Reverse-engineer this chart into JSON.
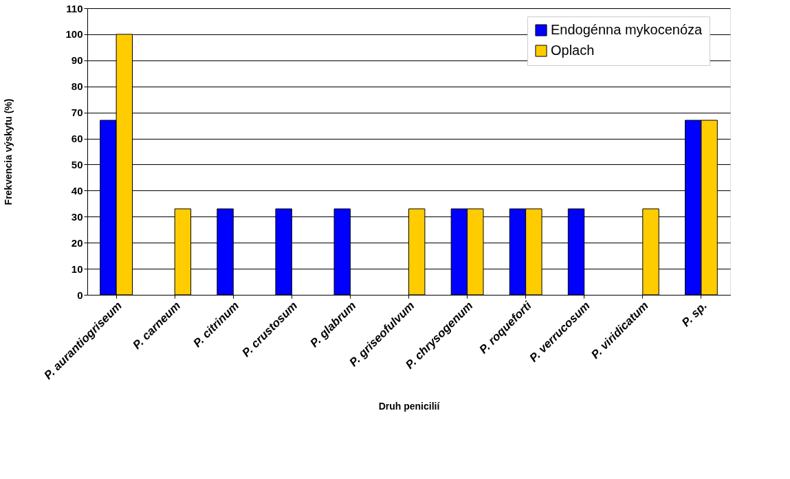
{
  "chart_data": {
    "type": "bar",
    "xlabel": "Druh penicilií",
    "ylabel": "Frekvencia výskytu (%)",
    "categories": [
      "P. aurantiogriseum",
      "P. carneum",
      "P. citrinum",
      "P. crustosum",
      "P. glabrum",
      "P. griseofulvum",
      "P. chrysogenum",
      "P. roqueforti",
      "P. verrucosum",
      "P. viridicatum",
      "P. sp."
    ],
    "series": [
      {
        "name": "Endogénna mykocenóza",
        "color": "#0000ff",
        "values": [
          67,
          null,
          33,
          33,
          33,
          null,
          33,
          33,
          33,
          null,
          67
        ]
      },
      {
        "name": "Oplach",
        "color": "#ffcc00",
        "values": [
          100,
          33,
          null,
          null,
          null,
          33,
          33,
          33,
          null,
          33,
          67
        ]
      }
    ],
    "ylim": [
      0,
      110
    ],
    "yticks": [
      0,
      10,
      20,
      30,
      40,
      50,
      60,
      70,
      80,
      90,
      100,
      110
    ],
    "grid": "y",
    "legend": "top right"
  }
}
